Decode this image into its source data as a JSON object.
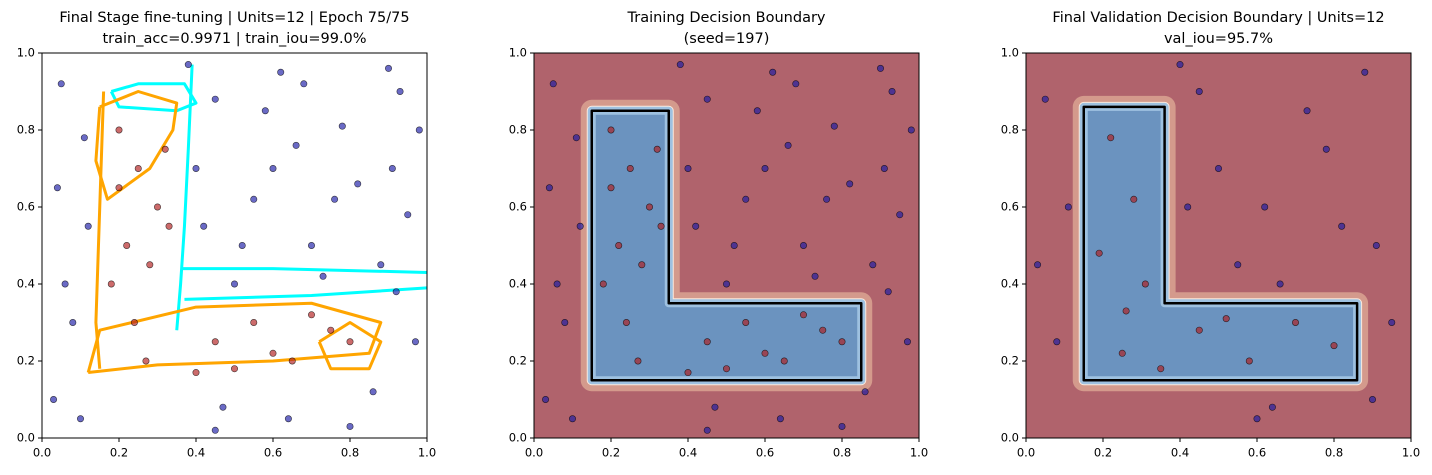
{
  "chart_data": [
    {
      "type": "scatter",
      "title": "Final Stage fine-tuning | Units=12 | Epoch 75/75",
      "subtitle": "train_acc=0.9971 | train_iou=99.0%",
      "xlim": [
        0,
        1
      ],
      "ylim": [
        0,
        1
      ],
      "xticks": [
        {
          "value": 0,
          "label": "0.0"
        },
        {
          "value": 0.2,
          "label": "0.2"
        },
        {
          "value": 0.4,
          "label": "0.4"
        },
        {
          "value": 0.6,
          "label": "0.6"
        },
        {
          "value": 0.8,
          "label": "0.8"
        },
        {
          "value": 1,
          "label": "1.0"
        }
      ],
      "yticks": [
        {
          "value": 0,
          "label": "0.0"
        },
        {
          "value": 0.2,
          "label": "0.2"
        },
        {
          "value": 0.4,
          "label": "0.4"
        },
        {
          "value": 0.6,
          "label": "0.6"
        },
        {
          "value": 0.8,
          "label": "0.8"
        },
        {
          "value": 1,
          "label": "1.0"
        }
      ],
      "series": [
        {
          "color": "#1a1aa6",
          "x": [
            0.05,
            0.12,
            0.45,
            0.62,
            0.78,
            0.91,
            0.55,
            0.7,
            0.88,
            0.95,
            0.5,
            0.66,
            0.82,
            0.42,
            0.58,
            0.73,
            0.93,
            0.08,
            0.03,
            0.11,
            0.47,
            0.64,
            0.86,
            0.97,
            0.4,
            0.52,
            0.76,
            0.9,
            0.06,
            0.6,
            0.45,
            0.8,
            0.1,
            0.92,
            0.68,
            0.04,
            0.38,
            0.98
          ],
          "y": [
            0.92,
            0.55,
            0.88,
            0.95,
            0.81,
            0.7,
            0.62,
            0.5,
            0.45,
            0.58,
            0.4,
            0.76,
            0.66,
            0.55,
            0.85,
            0.42,
            0.9,
            0.3,
            0.1,
            0.78,
            0.08,
            0.05,
            0.12,
            0.25,
            0.7,
            0.5,
            0.62,
            0.96,
            0.4,
            0.7,
            0.02,
            0.03,
            0.05,
            0.38,
            0.92,
            0.65,
            0.97,
            0.8
          ]
        },
        {
          "color": "#b01c1c",
          "x": [
            0.2,
            0.25,
            0.3,
            0.22,
            0.28,
            0.18,
            0.32,
            0.24,
            0.27,
            0.45,
            0.55,
            0.65,
            0.75,
            0.5,
            0.6,
            0.7,
            0.8,
            0.4,
            0.2,
            0.33
          ],
          "y": [
            0.8,
            0.7,
            0.6,
            0.5,
            0.45,
            0.4,
            0.75,
            0.3,
            0.2,
            0.25,
            0.3,
            0.2,
            0.28,
            0.18,
            0.22,
            0.32,
            0.25,
            0.17,
            0.65,
            0.55
          ]
        }
      ],
      "lines": [
        {
          "color": "#00ffff",
          "x": [
            0.39,
            0.38,
            0.37,
            0.36,
            0.35
          ],
          "y": [
            0.97,
            0.75,
            0.55,
            0.4,
            0.28
          ]
        },
        {
          "color": "#00ffff",
          "x": [
            0.36,
            0.6,
            1.0
          ],
          "y": [
            0.44,
            0.44,
            0.43
          ]
        },
        {
          "color": "#00ffff",
          "x": [
            0.37,
            0.7,
            1.0
          ],
          "y": [
            0.36,
            0.37,
            0.39
          ]
        },
        {
          "color": "#00ffff",
          "x": [
            0.18,
            0.25,
            0.37,
            0.4,
            0.35,
            0.2,
            0.18
          ],
          "y": [
            0.9,
            0.92,
            0.92,
            0.87,
            0.85,
            0.86,
            0.9
          ]
        },
        {
          "color": "#ffa500",
          "x": [
            0.15,
            0.25,
            0.35,
            0.34,
            0.28,
            0.17,
            0.14,
            0.15
          ],
          "y": [
            0.86,
            0.9,
            0.87,
            0.8,
            0.7,
            0.62,
            0.72,
            0.86
          ]
        },
        {
          "color": "#ffa500",
          "x": [
            0.12,
            0.3,
            0.6,
            0.85,
            0.88,
            0.7,
            0.4,
            0.15,
            0.12
          ],
          "y": [
            0.17,
            0.19,
            0.2,
            0.22,
            0.3,
            0.35,
            0.34,
            0.28,
            0.17
          ]
        },
        {
          "color": "#ffa500",
          "x": [
            0.16,
            0.15,
            0.14,
            0.15
          ],
          "y": [
            0.9,
            0.6,
            0.3,
            0.18
          ]
        },
        {
          "color": "#ffa500",
          "x": [
            0.72,
            0.8,
            0.88,
            0.85,
            0.75,
            0.72
          ],
          "y": [
            0.25,
            0.3,
            0.25,
            0.18,
            0.18,
            0.25
          ]
        }
      ]
    },
    {
      "type": "contour",
      "title": "Training Decision Boundary",
      "subtitle": "(seed=197)",
      "xlim": [
        0,
        1
      ],
      "ylim": [
        0,
        1
      ],
      "xticks": [
        {
          "value": 0,
          "label": "0.0"
        },
        {
          "value": 0.2,
          "label": "0.2"
        },
        {
          "value": 0.4,
          "label": "0.4"
        },
        {
          "value": 0.6,
          "label": "0.6"
        },
        {
          "value": 0.8,
          "label": "0.8"
        },
        {
          "value": 1,
          "label": "1.0"
        }
      ],
      "yticks": [
        {
          "value": 0,
          "label": "0.0"
        },
        {
          "value": 0.2,
          "label": "0.2"
        },
        {
          "value": 0.4,
          "label": "0.4"
        },
        {
          "value": 0.6,
          "label": "0.6"
        },
        {
          "value": 0.8,
          "label": "0.8"
        },
        {
          "value": 1,
          "label": "1.0"
        }
      ],
      "outside_color": "#b0636c",
      "inside_color": "#6b93bf",
      "boundary": {
        "x": [
          0.15,
          0.35,
          0.35,
          0.85,
          0.85,
          0.15
        ],
        "y": [
          0.85,
          0.85,
          0.35,
          0.35,
          0.15,
          0.15
        ]
      },
      "series": [
        {
          "color": "#1a1aa6",
          "x": [
            0.05,
            0.12,
            0.45,
            0.62,
            0.78,
            0.91,
            0.55,
            0.7,
            0.88,
            0.95,
            0.5,
            0.66,
            0.82,
            0.42,
            0.58,
            0.73,
            0.93,
            0.08,
            0.03,
            0.11,
            0.47,
            0.64,
            0.86,
            0.97,
            0.4,
            0.52,
            0.76,
            0.9,
            0.06,
            0.6,
            0.45,
            0.8,
            0.1,
            0.92,
            0.68,
            0.04,
            0.38,
            0.98
          ],
          "y": [
            0.92,
            0.55,
            0.88,
            0.95,
            0.81,
            0.7,
            0.62,
            0.5,
            0.45,
            0.58,
            0.4,
            0.76,
            0.66,
            0.55,
            0.85,
            0.42,
            0.9,
            0.3,
            0.1,
            0.78,
            0.08,
            0.05,
            0.12,
            0.25,
            0.7,
            0.5,
            0.62,
            0.96,
            0.4,
            0.7,
            0.02,
            0.03,
            0.05,
            0.38,
            0.92,
            0.65,
            0.97,
            0.8
          ]
        },
        {
          "color": "#b01c1c",
          "x": [
            0.2,
            0.25,
            0.3,
            0.22,
            0.28,
            0.18,
            0.32,
            0.24,
            0.27,
            0.45,
            0.55,
            0.65,
            0.75,
            0.5,
            0.6,
            0.7,
            0.8,
            0.4,
            0.2,
            0.33
          ],
          "y": [
            0.8,
            0.7,
            0.6,
            0.5,
            0.45,
            0.4,
            0.75,
            0.3,
            0.2,
            0.25,
            0.3,
            0.2,
            0.28,
            0.18,
            0.22,
            0.32,
            0.25,
            0.17,
            0.65,
            0.55
          ]
        }
      ]
    },
    {
      "type": "contour",
      "title": "Final Validation Decision Boundary | Units=12",
      "subtitle": "val_iou=95.7%",
      "xlim": [
        0,
        1
      ],
      "ylim": [
        0,
        1
      ],
      "xticks": [
        {
          "value": 0,
          "label": "0.0"
        },
        {
          "value": 0.2,
          "label": "0.2"
        },
        {
          "value": 0.4,
          "label": "0.4"
        },
        {
          "value": 0.6,
          "label": "0.6"
        },
        {
          "value": 0.8,
          "label": "0.8"
        },
        {
          "value": 1,
          "label": "1.0"
        }
      ],
      "yticks": [
        {
          "value": 0,
          "label": "0.0"
        },
        {
          "value": 0.2,
          "label": "0.2"
        },
        {
          "value": 0.4,
          "label": "0.4"
        },
        {
          "value": 0.6,
          "label": "0.6"
        },
        {
          "value": 0.8,
          "label": "0.8"
        },
        {
          "value": 1,
          "label": "1.0"
        }
      ],
      "outside_color": "#b0636c",
      "inside_color": "#6b93bf",
      "boundary": {
        "x": [
          0.15,
          0.36,
          0.36,
          0.86,
          0.86,
          0.15
        ],
        "y": [
          0.86,
          0.86,
          0.35,
          0.35,
          0.15,
          0.15
        ]
      },
      "series": [
        {
          "color": "#1a1aa6",
          "x": [
            0.05,
            0.45,
            0.62,
            0.78,
            0.91,
            0.55,
            0.88,
            0.5,
            0.66,
            0.82,
            0.42,
            0.73,
            0.08,
            0.11,
            0.64,
            0.9,
            0.4,
            0.6,
            0.95,
            0.03
          ],
          "y": [
            0.88,
            0.9,
            0.6,
            0.75,
            0.5,
            0.45,
            0.95,
            0.7,
            0.4,
            0.55,
            0.6,
            0.85,
            0.25,
            0.6,
            0.08,
            0.1,
            0.97,
            0.05,
            0.3,
            0.45
          ]
        },
        {
          "color": "#b01c1c",
          "x": [
            0.22,
            0.28,
            0.19,
            0.31,
            0.25,
            0.45,
            0.58,
            0.7,
            0.8,
            0.35,
            0.26,
            0.52
          ],
          "y": [
            0.78,
            0.62,
            0.48,
            0.4,
            0.22,
            0.28,
            0.2,
            0.3,
            0.24,
            0.18,
            0.33,
            0.31
          ]
        }
      ]
    }
  ]
}
